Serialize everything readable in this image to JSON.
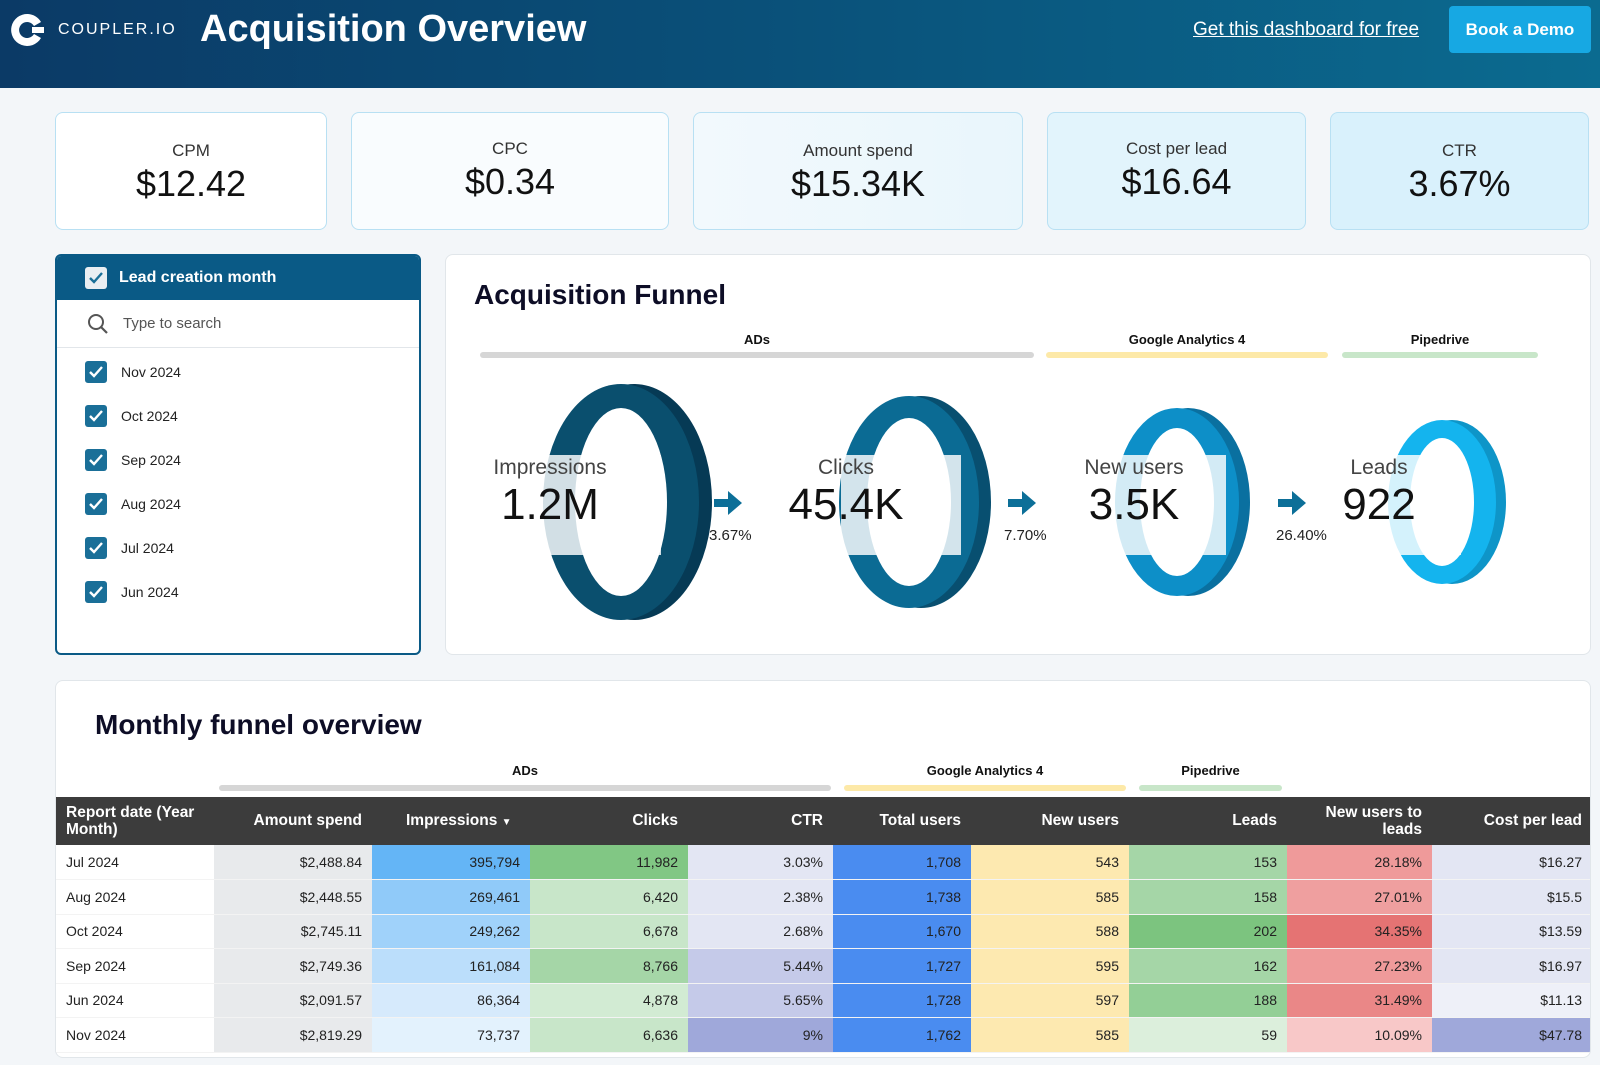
{
  "header": {
    "brand": "COUPLER.IO",
    "title": "Acquisition Overview",
    "free_link": "Get this dashboard for free",
    "demo_button": "Book a Demo"
  },
  "kpis": [
    {
      "label": "CPM",
      "value": "$12.42"
    },
    {
      "label": "CPC",
      "value": "$0.34"
    },
    {
      "label": "Amount spend",
      "value": "$15.34K"
    },
    {
      "label": "Cost per lead",
      "value": "$16.64"
    },
    {
      "label": "CTR",
      "value": "3.67%"
    }
  ],
  "filter": {
    "title": "Lead creation month",
    "search_placeholder": "Type to search",
    "items": [
      "Nov 2024",
      "Oct 2024",
      "Sep 2024",
      "Aug 2024",
      "Jul 2024",
      "Jun 2024"
    ]
  },
  "funnel": {
    "title": "Acquisition Funnel",
    "sources": [
      {
        "label": "ADs",
        "color": "#d6d6d6"
      },
      {
        "label": "Google Analytics 4",
        "color": "#fde9a8"
      },
      {
        "label": "Pipedrive",
        "color": "#c8e6c9"
      }
    ],
    "stages": [
      {
        "name": "Impressions",
        "value": "1.2M",
        "color": "#0a4f6e"
      },
      {
        "name": "Clicks",
        "value": "45.4K",
        "color": "#0b6b94"
      },
      {
        "name": "New users",
        "value": "3.5K",
        "color": "#0d8fc8"
      },
      {
        "name": "Leads",
        "value": "922",
        "color": "#14b4ee"
      }
    ],
    "rates": [
      "3.67%",
      "7.70%",
      "26.40%"
    ]
  },
  "monthly": {
    "title": "Monthly funnel overview",
    "sources": [
      "ADs",
      "Google Analytics 4",
      "Pipedrive"
    ],
    "columns": [
      "Report date (Year Month)",
      "Amount spend",
      "Impressions",
      "Clicks",
      "CTR",
      "Total users",
      "New users",
      "Leads",
      "New users to leads",
      "Cost per lead"
    ],
    "rows": [
      [
        "Jul 2024",
        "$2,488.84",
        "395,794",
        "11,982",
        "3.03%",
        "1,708",
        "543",
        "153",
        "28.18%",
        "$16.27"
      ],
      [
        "Aug 2024",
        "$2,448.55",
        "269,461",
        "6,420",
        "2.38%",
        "1,738",
        "585",
        "158",
        "27.01%",
        "$15.5"
      ],
      [
        "Oct 2024",
        "$2,745.11",
        "249,262",
        "6,678",
        "2.68%",
        "1,670",
        "588",
        "202",
        "34.35%",
        "$13.59"
      ],
      [
        "Sep 2024",
        "$2,749.36",
        "161,084",
        "8,766",
        "5.44%",
        "1,727",
        "595",
        "162",
        "27.23%",
        "$16.97"
      ],
      [
        "Jun 2024",
        "$2,091.57",
        "86,364",
        "4,878",
        "5.65%",
        "1,728",
        "597",
        "188",
        "31.49%",
        "$11.13"
      ],
      [
        "Nov 2024",
        "$2,819.29",
        "73,737",
        "6,636",
        "9%",
        "1,762",
        "585",
        "59",
        "10.09%",
        "$47.78"
      ]
    ],
    "cell_colors": [
      [
        "#e8eaec",
        "#64b5f6",
        "#81c784",
        "#e3e6f3",
        "#4a8cf0",
        "#fde9b0",
        "#a5d6a7",
        "#ef9a9a",
        "#e3e6f3"
      ],
      [
        "#e8eaec",
        "#90caf9",
        "#c8e6c9",
        "#e3e6f3",
        "#4a8cf0",
        "#fde9b0",
        "#a5d6a7",
        "#ef9f9f",
        "#e3e6f3"
      ],
      [
        "#e8eaec",
        "#a0d2fa",
        "#c8e6c9",
        "#e3e6f3",
        "#4a8cf0",
        "#fde9b0",
        "#7cc47f",
        "#e57373",
        "#e3e6f3"
      ],
      [
        "#e8eaec",
        "#bbdefb",
        "#a5d6a7",
        "#c5cae9",
        "#4a8cf0",
        "#fde9b0",
        "#a5d6a7",
        "#ef9a9a",
        "#e3e6f3"
      ],
      [
        "#e8eaec",
        "#d6eafc",
        "#d2ebd3",
        "#c5cae9",
        "#4a8cf0",
        "#fde9b0",
        "#93cf96",
        "#ea8787",
        "#eef0f8"
      ],
      [
        "#e8eaec",
        "#e3f2fd",
        "#c8e6c9",
        "#9fa8da",
        "#4a8cf0",
        "#fde9b0",
        "#dcefdc",
        "#f8c8c8",
        "#9fa8da"
      ]
    ]
  }
}
